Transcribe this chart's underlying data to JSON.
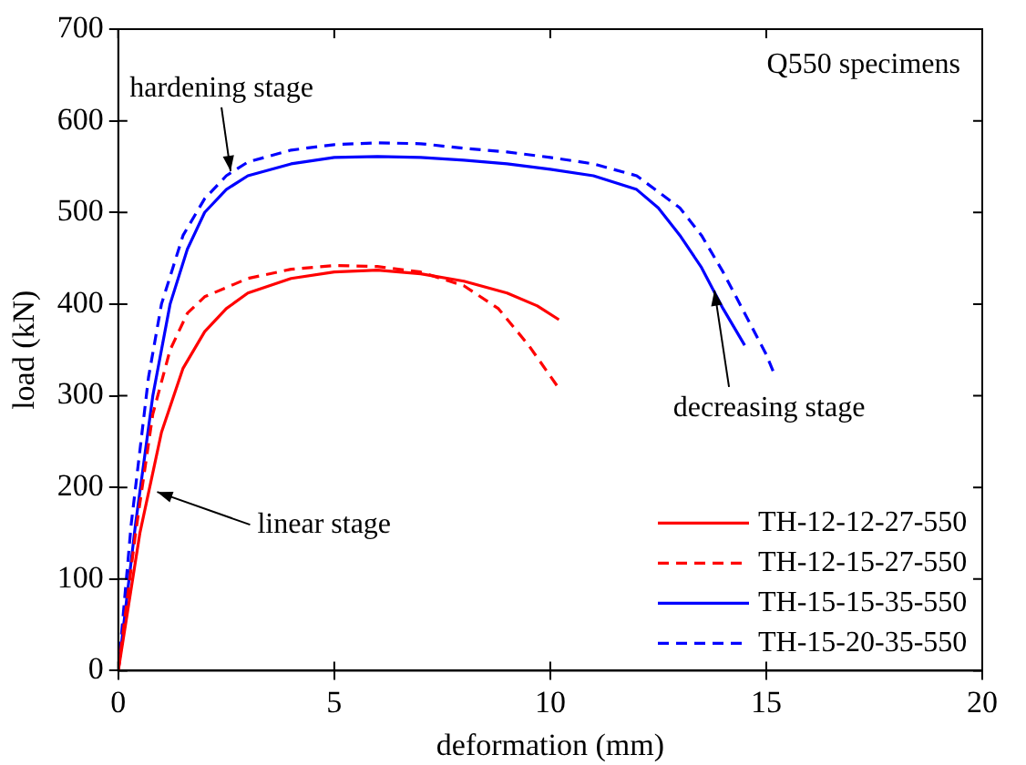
{
  "chart_data": {
    "type": "line",
    "xlabel": "deformation (mm)",
    "ylabel": "load (kN)",
    "xlim": [
      0,
      20
    ],
    "ylim": [
      0,
      700
    ],
    "xticks": [
      0,
      5,
      10,
      15,
      20
    ],
    "yticks": [
      0,
      100,
      200,
      300,
      400,
      500,
      600,
      700
    ],
    "grid": false,
    "legend": "bottom right",
    "marker": "none",
    "annotations": [
      "Q550 specimens",
      {
        "text": "hardening stage",
        "x": 2.6,
        "y": 545
      },
      {
        "text": "linear stage",
        "x": 0.9,
        "y": 195
      },
      {
        "text": "decreasing stage",
        "x": 13.8,
        "y": 415
      }
    ],
    "series": [
      {
        "name": "TH-12-12-27-550",
        "color": "#ff0000",
        "line_style": "solid",
        "x": [
          0,
          0.5,
          1,
          1.5,
          2,
          2.5,
          3,
          4,
          5,
          6,
          7,
          8,
          9,
          9.7,
          10.2
        ],
        "values": [
          0,
          150,
          260,
          330,
          370,
          395,
          412,
          428,
          435,
          437,
          433,
          425,
          412,
          398,
          383
        ]
      },
      {
        "name": "TH-12-15-27-550",
        "color": "#ff0000",
        "line_style": "dashed",
        "x": [
          0,
          0.4,
          0.8,
          1.2,
          1.6,
          2,
          3,
          4,
          5,
          6,
          7,
          8,
          8.8,
          9.5,
          10.2
        ],
        "values": [
          0,
          150,
          280,
          350,
          390,
          408,
          428,
          438,
          442,
          441,
          435,
          420,
          395,
          355,
          308
        ]
      },
      {
        "name": "TH-15-15-35-550",
        "color": "#0000ff",
        "line_style": "solid",
        "x": [
          0,
          0.4,
          0.8,
          1.2,
          1.6,
          2,
          2.5,
          3,
          4,
          5,
          6,
          7,
          8,
          9,
          10,
          11,
          12,
          12.5,
          13,
          13.5,
          14,
          14.5
        ],
        "values": [
          0,
          160,
          300,
          400,
          460,
          500,
          525,
          540,
          553,
          560,
          561,
          560,
          557,
          553,
          547,
          540,
          525,
          505,
          475,
          440,
          395,
          355
        ]
      },
      {
        "name": "TH-15-20-35-550",
        "color": "#0000ff",
        "line_style": "dashed",
        "x": [
          0,
          0.3,
          0.7,
          1,
          1.5,
          2,
          2.5,
          3,
          4,
          5,
          6,
          7,
          8,
          9,
          10,
          11,
          12,
          13,
          13.5,
          14,
          14.5,
          15,
          15.2
        ],
        "values": [
          0,
          160,
          320,
          400,
          475,
          515,
          540,
          555,
          568,
          574,
          576,
          575,
          570,
          566,
          560,
          553,
          540,
          505,
          475,
          435,
          390,
          345,
          322
        ]
      }
    ]
  }
}
